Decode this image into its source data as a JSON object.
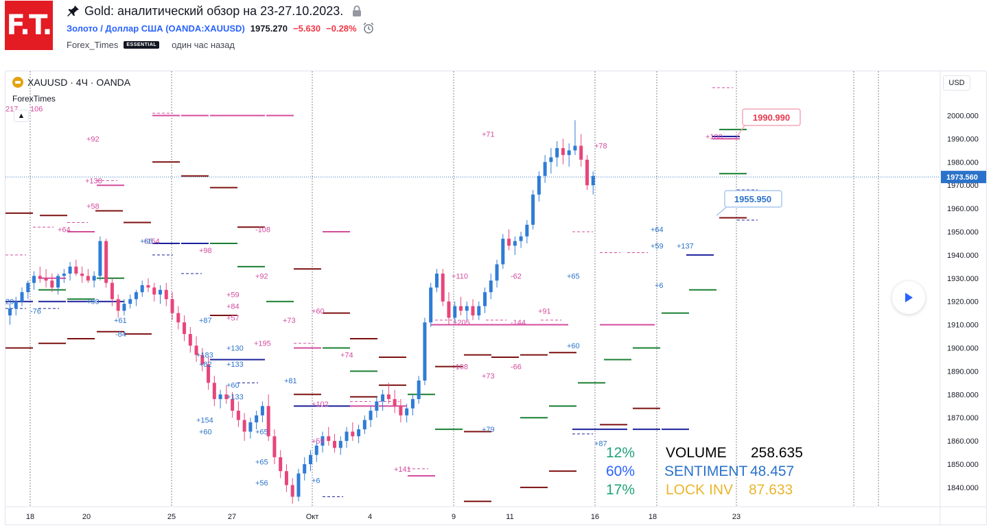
{
  "header": {
    "logo_text": "F.T.",
    "title": "Gold: аналитический обзор на 23-27.10.2023.",
    "symbol_link": "Золото / Доллар США (OANDA:XAUUSD)",
    "price": "1975.270",
    "change": "−5.630",
    "change_pct": "−0.28%",
    "author": "Forex_Times",
    "author_badge": "ESSENTIAL",
    "published": "один час назад"
  },
  "chart_header": {
    "legend": "XAUUSD · 4Ч · OANDA",
    "indicator": "ForexTimes",
    "currency": "USD"
  },
  "stats": {
    "pct1": "12%",
    "pct2": "60%",
    "pct3": "17%",
    "volume_label": "VOLUME",
    "volume_value": "258.635",
    "sentiment_label": "SENTIMENT",
    "sentiment_value": "48.457",
    "lock_label": "LOCK INV",
    "lock_value": "87.633"
  },
  "colors": {
    "up": "#2e7cd6",
    "down": "#e8457a",
    "green": "#177f30",
    "darkred": "#7c0f0f",
    "navy": "#1a1f9c",
    "pink": "#d44a9e"
  },
  "chart_data": {
    "type": "candlestick",
    "symbol": "XAUUSD",
    "timeframe": "4Ч",
    "ylim": [
      1830,
      2010
    ],
    "y_ticks": [
      2000,
      1990,
      1980,
      1970,
      1960,
      1950,
      1940,
      1930,
      1920,
      1910,
      1900,
      1890,
      1880,
      1870,
      1860,
      1850,
      1840
    ],
    "x_ticks": [
      "18",
      "20",
      "25",
      "27",
      "Окт",
      "4",
      "9",
      "11",
      "16",
      "18",
      "23"
    ],
    "current_price": "1973.560",
    "callouts": [
      {
        "text": "1990.990",
        "price": 1990.99,
        "kind": "resistance"
      },
      {
        "text": "1955.950",
        "price": 1955.95,
        "kind": "support"
      }
    ],
    "candles": [
      [
        1914,
        1919,
        1910,
        1917
      ],
      [
        1917,
        1922,
        1914,
        1920
      ],
      [
        1920,
        1926,
        1918,
        1924
      ],
      [
        1924,
        1929,
        1921,
        1928
      ],
      [
        1928,
        1933,
        1925,
        1931
      ],
      [
        1931,
        1935,
        1928,
        1930
      ],
      [
        1930,
        1934,
        1926,
        1929
      ],
      [
        1929,
        1932,
        1924,
        1926
      ],
      [
        1926,
        1932,
        1923,
        1931
      ],
      [
        1931,
        1934,
        1928,
        1932
      ],
      [
        1932,
        1937,
        1929,
        1935
      ],
      [
        1935,
        1938,
        1931,
        1932
      ],
      [
        1932,
        1935,
        1928,
        1931
      ],
      [
        1931,
        1934,
        1928,
        1929
      ],
      [
        1929,
        1933,
        1926,
        1931
      ],
      [
        1931,
        1948,
        1929,
        1946
      ],
      [
        1946,
        1947,
        1926,
        1928
      ],
      [
        1928,
        1930,
        1918,
        1921
      ],
      [
        1921,
        1923,
        1913,
        1916
      ],
      [
        1916,
        1921,
        1914,
        1919
      ],
      [
        1919,
        1923,
        1917,
        1921
      ],
      [
        1921,
        1925,
        1918,
        1924
      ],
      [
        1924,
        1929,
        1922,
        1927
      ],
      [
        1927,
        1930,
        1924,
        1926
      ],
      [
        1926,
        1928,
        1920,
        1923
      ],
      [
        1923,
        1927,
        1919,
        1925
      ],
      [
        1925,
        1928,
        1918,
        1921
      ],
      [
        1921,
        1924,
        1912,
        1915
      ],
      [
        1915,
        1918,
        1908,
        1911
      ],
      [
        1911,
        1914,
        1903,
        1906
      ],
      [
        1906,
        1909,
        1898,
        1901
      ],
      [
        1901,
        1905,
        1894,
        1897
      ],
      [
        1897,
        1900,
        1890,
        1893
      ],
      [
        1893,
        1896,
        1882,
        1885
      ],
      [
        1885,
        1888,
        1875,
        1878
      ],
      [
        1878,
        1882,
        1874,
        1880
      ],
      [
        1880,
        1884,
        1876,
        1878
      ],
      [
        1878,
        1881,
        1870,
        1873
      ],
      [
        1873,
        1877,
        1866,
        1869
      ],
      [
        1869,
        1872,
        1860,
        1864
      ],
      [
        1864,
        1870,
        1861,
        1868
      ],
      [
        1868,
        1873,
        1865,
        1871
      ],
      [
        1871,
        1877,
        1868,
        1875
      ],
      [
        1875,
        1880,
        1860,
        1862
      ],
      [
        1862,
        1865,
        1850,
        1853
      ],
      [
        1853,
        1856,
        1844,
        1847
      ],
      [
        1847,
        1850,
        1838,
        1841
      ],
      [
        1841,
        1844,
        1833,
        1836
      ],
      [
        1836,
        1848,
        1834,
        1846
      ],
      [
        1846,
        1853,
        1843,
        1850
      ],
      [
        1850,
        1856,
        1847,
        1854
      ],
      [
        1854,
        1860,
        1851,
        1858
      ],
      [
        1858,
        1864,
        1855,
        1862
      ],
      [
        1862,
        1866,
        1858,
        1860
      ],
      [
        1860,
        1863,
        1855,
        1857
      ],
      [
        1857,
        1862,
        1854,
        1860
      ],
      [
        1860,
        1866,
        1857,
        1864
      ],
      [
        1864,
        1868,
        1860,
        1862
      ],
      [
        1862,
        1867,
        1859,
        1865
      ],
      [
        1865,
        1871,
        1863,
        1869
      ],
      [
        1869,
        1875,
        1866,
        1873
      ],
      [
        1873,
        1879,
        1870,
        1877
      ],
      [
        1877,
        1882,
        1873,
        1880
      ],
      [
        1880,
        1885,
        1876,
        1878
      ],
      [
        1878,
        1882,
        1872,
        1875
      ],
      [
        1875,
        1878,
        1868,
        1871
      ],
      [
        1871,
        1876,
        1868,
        1874
      ],
      [
        1874,
        1880,
        1871,
        1878
      ],
      [
        1878,
        1888,
        1876,
        1886
      ],
      [
        1886,
        1913,
        1884,
        1911
      ],
      [
        1911,
        1928,
        1909,
        1926
      ],
      [
        1926,
        1934,
        1924,
        1932
      ],
      [
        1932,
        1934,
        1918,
        1920
      ],
      [
        1920,
        1924,
        1910,
        1913
      ],
      [
        1913,
        1920,
        1911,
        1918
      ],
      [
        1918,
        1922,
        1914,
        1916
      ],
      [
        1916,
        1920,
        1912,
        1918
      ],
      [
        1918,
        1921,
        1912,
        1914
      ],
      [
        1914,
        1920,
        1912,
        1918
      ],
      [
        1918,
        1926,
        1915,
        1924
      ],
      [
        1924,
        1932,
        1921,
        1929
      ],
      [
        1929,
        1938,
        1926,
        1936
      ],
      [
        1936,
        1949,
        1934,
        1947
      ],
      [
        1947,
        1951,
        1942,
        1944
      ],
      [
        1944,
        1948,
        1940,
        1946
      ],
      [
        1946,
        1950,
        1943,
        1948
      ],
      [
        1948,
        1955,
        1945,
        1953
      ],
      [
        1953,
        1968,
        1951,
        1966
      ],
      [
        1966,
        1976,
        1963,
        1974
      ],
      [
        1974,
        1983,
        1971,
        1980
      ],
      [
        1980,
        1986,
        1975,
        1982
      ],
      [
        1982,
        1989,
        1978,
        1986
      ],
      [
        1986,
        1990,
        1979,
        1983
      ],
      [
        1983,
        1988,
        1978,
        1985
      ],
      [
        1985,
        1998,
        1983,
        1987
      ],
      [
        1987,
        1992,
        1978,
        1981
      ],
      [
        1981,
        1983,
        1968,
        1970
      ],
      [
        1970,
        1976,
        1966,
        1974
      ]
    ]
  }
}
